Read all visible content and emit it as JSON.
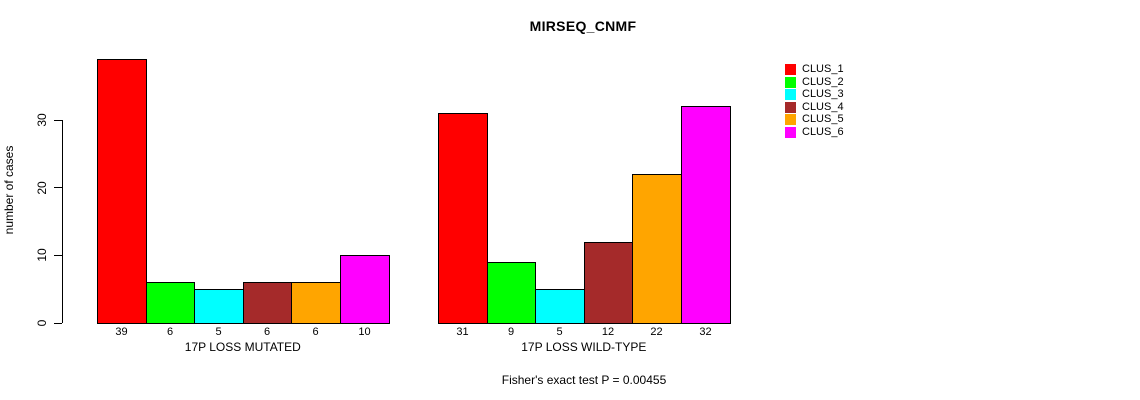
{
  "chart_data": {
    "type": "bar",
    "title": "MIRSEQ_CNMF",
    "ylabel": "number of cases",
    "xlabel": "",
    "ylim": [
      0,
      39
    ],
    "yticks": [
      0,
      10,
      20,
      30
    ],
    "grid": false,
    "legend_position": "right",
    "bar_borders_color": "#000000",
    "series": [
      {
        "name": "CLUS_1",
        "color": "#FF0000"
      },
      {
        "name": "CLUS_2",
        "color": "#00FF00"
      },
      {
        "name": "CLUS_3",
        "color": "#00FFFF"
      },
      {
        "name": "CLUS_4",
        "color": "#A52A2A"
      },
      {
        "name": "CLUS_5",
        "color": "#FFA500"
      },
      {
        "name": "CLUS_6",
        "color": "#FF00FF"
      }
    ],
    "groups": [
      {
        "label": "17P LOSS MUTATED",
        "values": [
          39,
          6,
          5,
          6,
          6,
          10
        ]
      },
      {
        "label": "17P LOSS WILD-TYPE",
        "values": [
          31,
          9,
          5,
          12,
          22,
          32
        ]
      }
    ],
    "footnote": "Fisher's exact test P = 0.00455"
  }
}
